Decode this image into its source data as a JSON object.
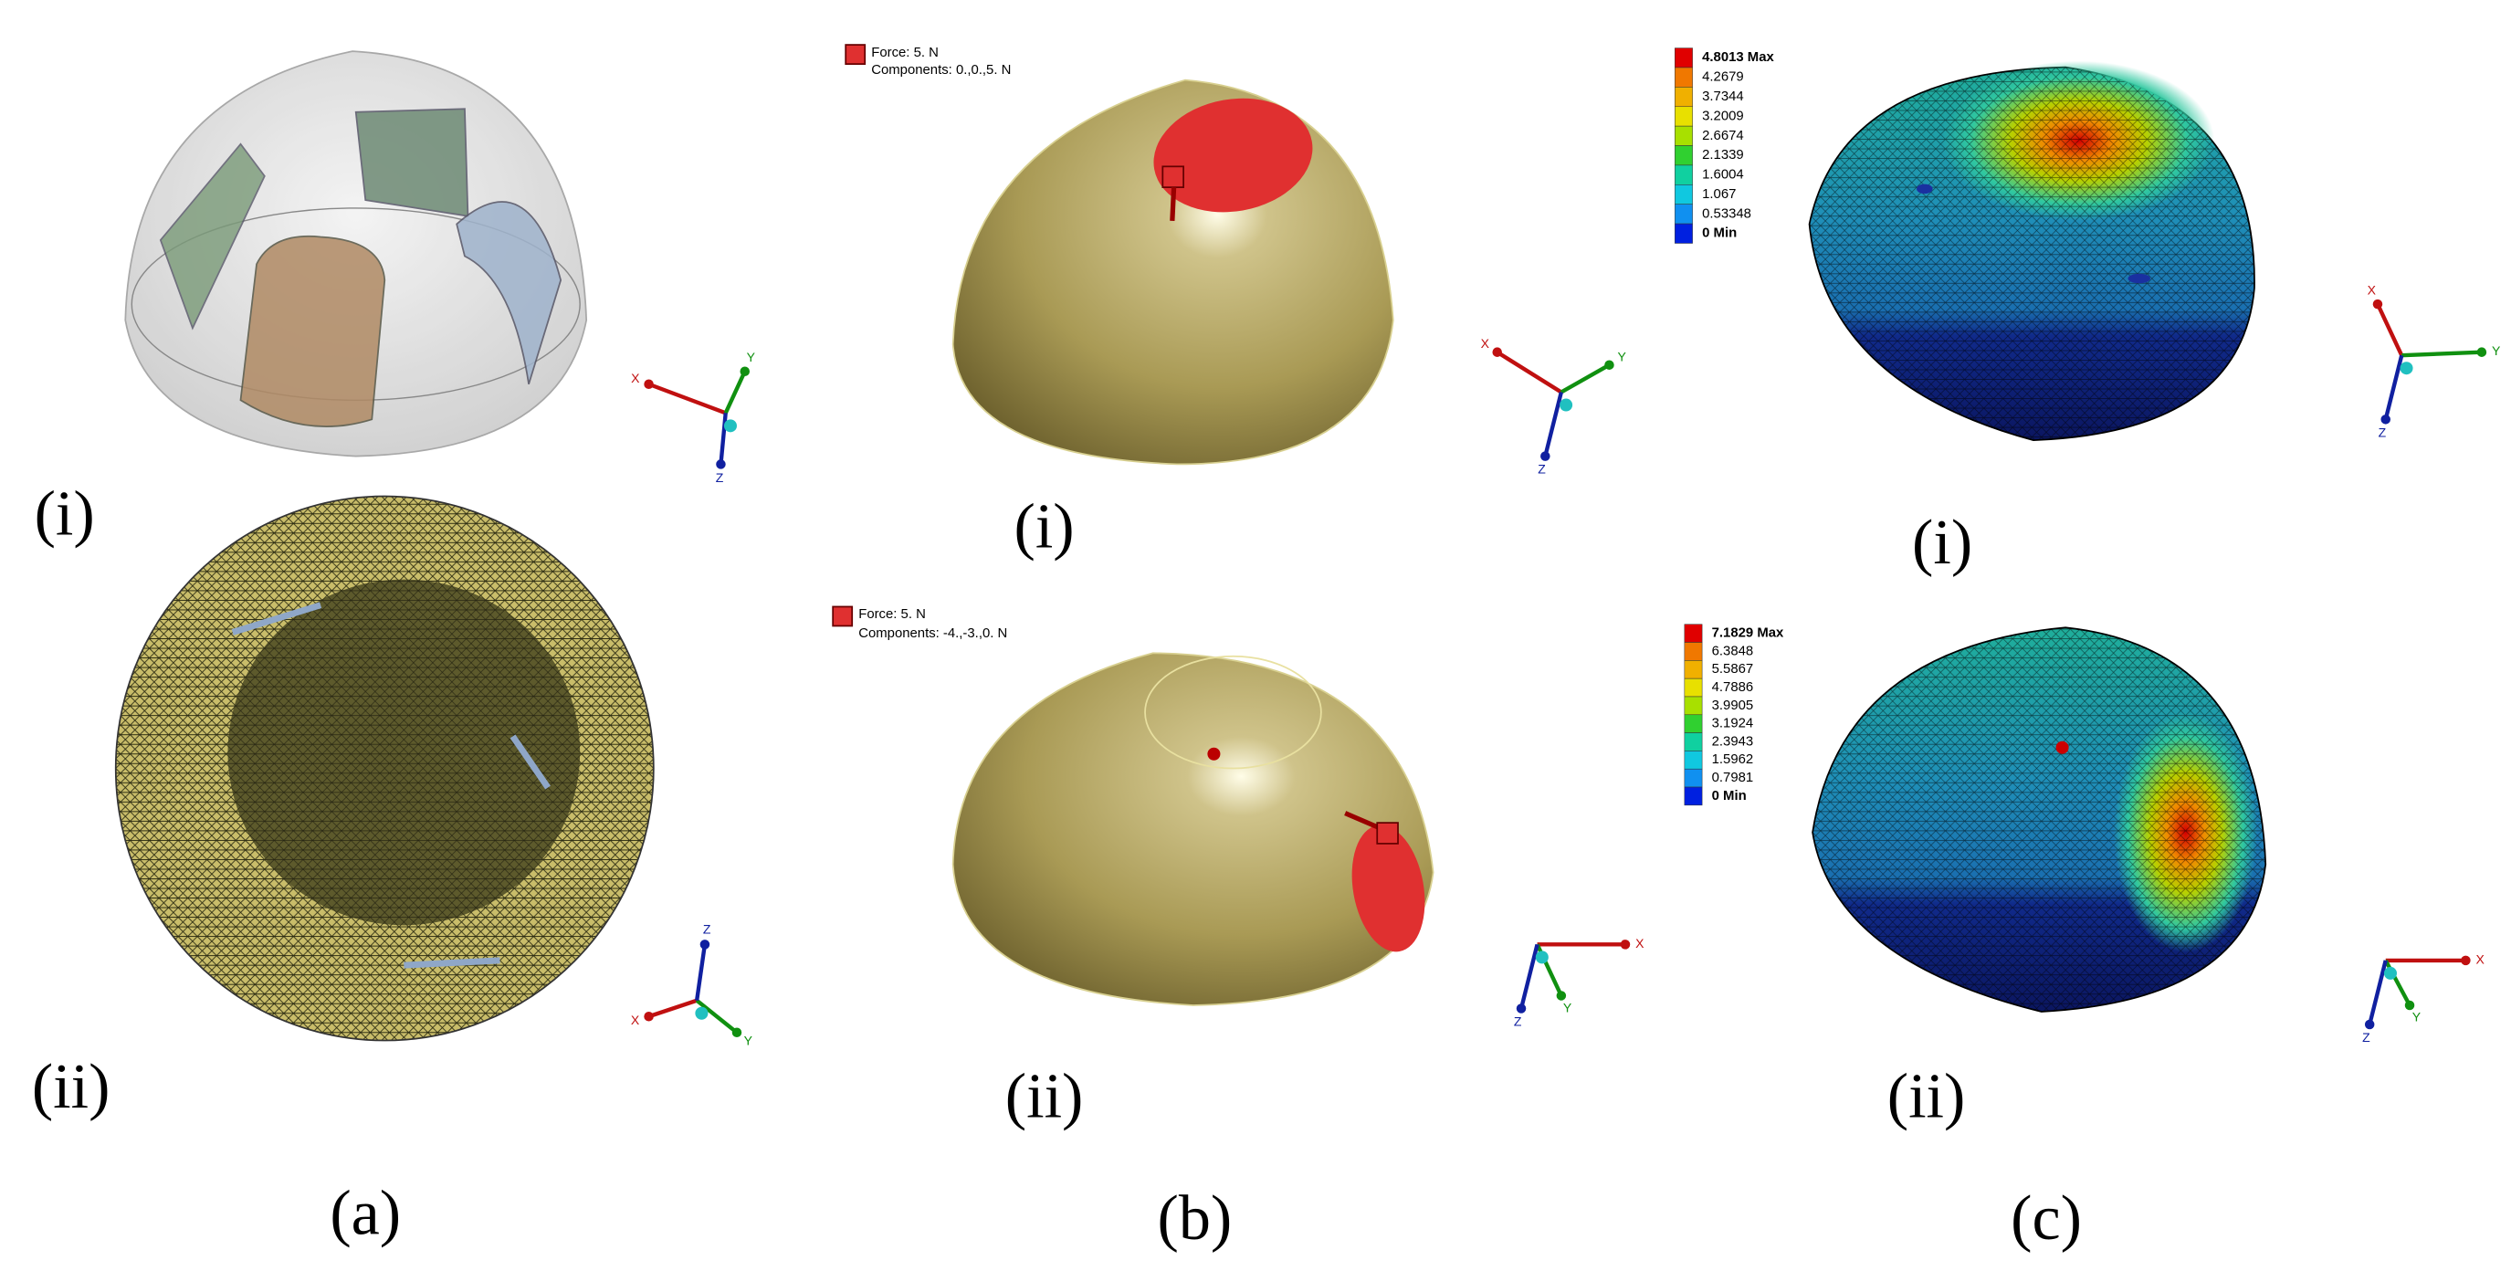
{
  "panels": {
    "a": {
      "caption": "(a)",
      "row_labels": [
        "(i)",
        "(ii)"
      ]
    },
    "b": {
      "caption": "(b)",
      "row_labels": [
        "(i)",
        "(ii)"
      ],
      "loads": [
        {
          "force": "Force: 5. N",
          "components": "Components: 0.,0.,5. N"
        },
        {
          "force": "Force: 5. N",
          "components": "Components: -4.,-3.,0. N"
        }
      ]
    },
    "c": {
      "caption": "(c)",
      "row_labels": [
        "(i)",
        "(ii)"
      ],
      "legends": [
        [
          "4.8013 Max",
          "4.2679",
          "3.7344",
          "3.2009",
          "2.6674",
          "2.1339",
          "1.6004",
          "1.067",
          "0.53348",
          "0 Min"
        ],
        [
          "7.1829 Max",
          "6.3848",
          "5.5867",
          "4.7886",
          "3.9905",
          "3.1924",
          "2.3943",
          "1.5962",
          "0.7981",
          "0 Min"
        ]
      ]
    }
  },
  "triads": [
    {
      "x": "X",
      "y": "Y",
      "z": "Z"
    },
    {
      "x": "X",
      "y": "Y",
      "z": "Z"
    },
    {
      "x": "X",
      "y": "Y",
      "z": "Z"
    },
    {
      "x": "X",
      "y": "Y",
      "z": "Z"
    },
    {
      "x": "X",
      "y": "Y",
      "z": "Z"
    },
    {
      "x": "X",
      "y": "Y",
      "z": "Z"
    }
  ]
}
